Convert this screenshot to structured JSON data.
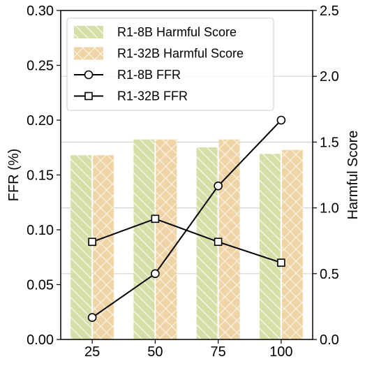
{
  "chart_data": {
    "type": "bar",
    "categories": [
      "25",
      "50",
      "75",
      "100"
    ],
    "ylabel": "FFR (%)",
    "y2label": "Harmful Score",
    "ylim": [
      0,
      0.3
    ],
    "y2lim": [
      0,
      2.5
    ],
    "yticks": [
      "0.00",
      "0.05",
      "0.10",
      "0.15",
      "0.20",
      "0.25",
      "0.30"
    ],
    "y2ticks": [
      "0.0",
      "0.5",
      "1.0",
      "1.5",
      "2.0",
      "2.5"
    ],
    "grid": "horizontal, right axis",
    "legend_position": "upper-left",
    "bar_series": [
      {
        "name": "R1-8B Harmful Score",
        "axis": "right",
        "hatch": "diagonal",
        "color": "#d6dfa8",
        "values": [
          1.4,
          1.52,
          1.46,
          1.41
        ]
      },
      {
        "name": "R1-32B Harmful Score",
        "axis": "right",
        "hatch": "cross",
        "color": "#efd4a6",
        "values": [
          1.4,
          1.52,
          1.52,
          1.44
        ]
      }
    ],
    "line_series": [
      {
        "name": "R1-8B FFR",
        "axis": "left",
        "marker": "circle",
        "color": "#000000",
        "values": [
          0.02,
          0.06,
          0.14,
          0.2
        ]
      },
      {
        "name": "R1-32B FFR",
        "axis": "left",
        "marker": "square",
        "color": "#000000",
        "values": [
          0.089,
          0.11,
          0.089,
          0.07
        ]
      }
    ]
  }
}
